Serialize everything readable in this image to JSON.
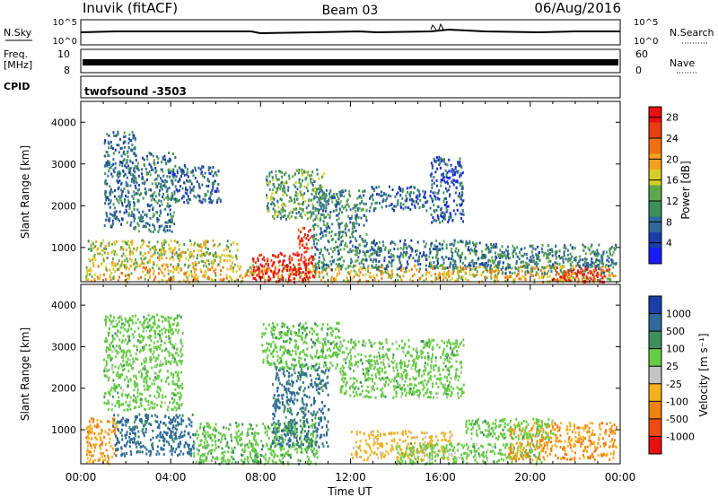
{
  "header": {
    "station": "Inuvik (fitACF)",
    "beam": "Beam 03",
    "date": "06/Aug/2016"
  },
  "noise_panel": {
    "left_label": "N.Sky",
    "right_label": "N.Search",
    "left_ticks": [
      "10^5",
      "10^0"
    ],
    "right_ticks": [
      "10^5",
      "10^0"
    ]
  },
  "freq_panel": {
    "left_label_line1": "Freq.",
    "left_label_line2": "[MHz]",
    "left_ticks": [
      "10",
      "8"
    ],
    "right_label": "Nave",
    "right_ticks": [
      "60",
      "0"
    ]
  },
  "cpid_panel": {
    "label": "CPID",
    "value": "twofsound -3503"
  },
  "colors": {
    "power_scale": [
      "#1a1aff",
      "#1a3ea8",
      "#2f6a9a",
      "#3e8f5c",
      "#5ea84c",
      "#d4cf28",
      "#f5a020",
      "#f07010",
      "#e84010",
      "#e81010"
    ],
    "velocity_scale": [
      "#1a3ea8",
      "#2f6a9a",
      "#3e8f5c",
      "#66cc44",
      "#c4c4c4",
      "#f5b020",
      "#f08010",
      "#f04a10",
      "#e81010"
    ]
  },
  "chart_data": [
    {
      "type": "heatmap",
      "name": "power",
      "ylabel": "Slant Range [km]",
      "ylim": [
        180,
        4500
      ],
      "y_ticks": [
        1000,
        2000,
        3000,
        4000
      ],
      "x_tick_labels": [
        "00:00",
        "04:00",
        "08:00",
        "12:00",
        "16:00",
        "20:00",
        "00:00"
      ],
      "colorbar_label": "Power [dB]",
      "colorbar_ticks": [
        4,
        8,
        12,
        16,
        20,
        24,
        28
      ],
      "colorbar_range": [
        0,
        30
      ],
      "regions": [
        {
          "t": [
            0.2,
            23.8
          ],
          "r": [
            200,
            600
          ],
          "v": 18
        },
        {
          "t": [
            0.3,
            7.0
          ],
          "r": [
            600,
            1200
          ],
          "v": 16
        },
        {
          "t": [
            7.6,
            10.4
          ],
          "r": [
            200,
            900
          ],
          "v": 29
        },
        {
          "t": [
            9.6,
            10.3
          ],
          "r": [
            900,
            1500
          ],
          "v": 26
        },
        {
          "t": [
            1.0,
            2.4
          ],
          "r": [
            1500,
            3800
          ],
          "v": 8
        },
        {
          "t": [
            2.3,
            4.2
          ],
          "r": [
            1400,
            3300
          ],
          "v": 9
        },
        {
          "t": [
            4.0,
            6.2
          ],
          "r": [
            2100,
            3000
          ],
          "v": 7
        },
        {
          "t": [
            8.2,
            10.8
          ],
          "r": [
            1700,
            2900
          ],
          "v": 12
        },
        {
          "t": [
            10.3,
            12.7
          ],
          "r": [
            500,
            2400
          ],
          "v": 10
        },
        {
          "t": [
            12.8,
            15.4
          ],
          "r": [
            1900,
            2500
          ],
          "v": 7
        },
        {
          "t": [
            15.5,
            17.0
          ],
          "r": [
            1600,
            3200
          ],
          "v": 6
        },
        {
          "t": [
            12.5,
            19.0
          ],
          "r": [
            500,
            1200
          ],
          "v": 9
        },
        {
          "t": [
            18.5,
            23.8
          ],
          "r": [
            400,
            1100
          ],
          "v": 10
        },
        {
          "t": [
            21.0,
            23.5
          ],
          "r": [
            200,
            550
          ],
          "v": 27
        }
      ]
    },
    {
      "type": "heatmap",
      "name": "velocity",
      "ylabel": "Slant Range [km]",
      "ylim": [
        180,
        4500
      ],
      "y_ticks": [
        1000,
        2000,
        3000,
        4000
      ],
      "x_tick_labels": [
        "00:00",
        "04:00",
        "08:00",
        "12:00",
        "16:00",
        "20:00",
        "00:00"
      ],
      "xlabel": "Time UT",
      "colorbar_label": "Velocity [m s⁻¹]",
      "colorbar_ticks": [
        "1000",
        "500",
        "100",
        "25",
        "-25",
        "-100",
        "-500",
        "-1000"
      ],
      "regions": [
        {
          "t": [
            0.2,
            1.6
          ],
          "r": [
            200,
            1300
          ],
          "v": -300
        },
        {
          "t": [
            1.4,
            5.0
          ],
          "r": [
            400,
            1400
          ],
          "v": 150
        },
        {
          "t": [
            1.0,
            4.5
          ],
          "r": [
            1500,
            3800
          ],
          "v": 0
        },
        {
          "t": [
            5.0,
            10.5
          ],
          "r": [
            200,
            1200
          ],
          "v": 10
        },
        {
          "t": [
            8.5,
            11.0
          ],
          "r": [
            600,
            2600
          ],
          "v": 120
        },
        {
          "t": [
            8.0,
            11.5
          ],
          "r": [
            2500,
            3600
          ],
          "v": 5
        },
        {
          "t": [
            11.5,
            17.0
          ],
          "r": [
            1800,
            3200
          ],
          "v": 0
        },
        {
          "t": [
            12.0,
            16.5
          ],
          "r": [
            300,
            1000
          ],
          "v": -150
        },
        {
          "t": [
            14.0,
            20.5
          ],
          "r": [
            200,
            700
          ],
          "v": 0
        },
        {
          "t": [
            19.0,
            23.8
          ],
          "r": [
            300,
            1200
          ],
          "v": -300
        },
        {
          "t": [
            17.0,
            21.0
          ],
          "r": [
            800,
            1300
          ],
          "v": 0
        }
      ]
    }
  ]
}
